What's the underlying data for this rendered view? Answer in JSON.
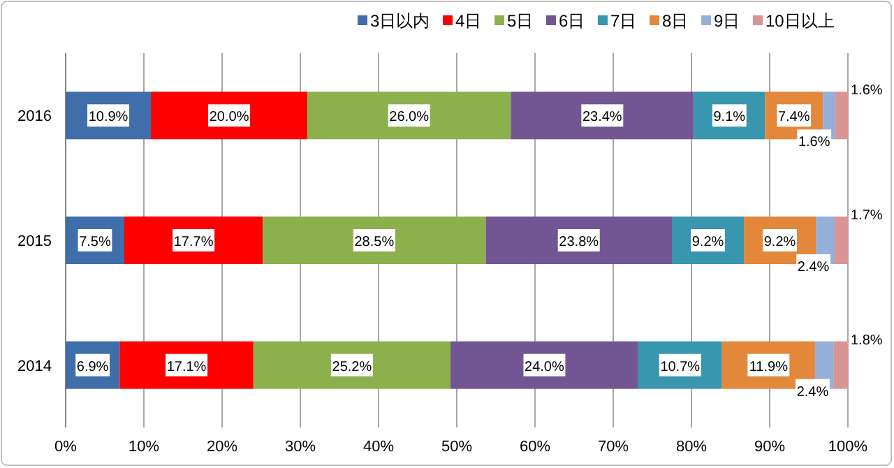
{
  "chart_data": {
    "type": "bar",
    "orientation": "horizontal",
    "stacked": true,
    "categories": [
      "2016",
      "2015",
      "2014"
    ],
    "series": [
      {
        "name": "3日以内",
        "color": "#3f6eaa",
        "values": [
          10.9,
          7.5,
          6.9
        ],
        "value_labels": [
          "10.9%",
          "7.5%",
          "6.9%"
        ]
      },
      {
        "name": "4日",
        "color": "#ff0000",
        "values": [
          20.0,
          17.7,
          17.1
        ],
        "value_labels": [
          "20.0%",
          "17.7%",
          "17.1%"
        ]
      },
      {
        "name": "5日",
        "color": "#8cb04c",
        "values": [
          26.0,
          28.5,
          25.2
        ],
        "value_labels": [
          "26.0%",
          "28.5%",
          "25.2%"
        ]
      },
      {
        "name": "6日",
        "color": "#725694",
        "values": [
          23.4,
          23.8,
          24.0
        ],
        "value_labels": [
          "23.4%",
          "23.8%",
          "24.0%"
        ]
      },
      {
        "name": "7日",
        "color": "#3897ae",
        "values": [
          9.1,
          9.2,
          10.7
        ],
        "value_labels": [
          "9.1%",
          "9.2%",
          "10.7%"
        ]
      },
      {
        "name": "8日",
        "color": "#e3873b",
        "values": [
          7.4,
          9.2,
          11.9
        ],
        "value_labels": [
          "7.4%",
          "9.2%",
          "11.9%"
        ]
      },
      {
        "name": "9日",
        "color": "#95b0d8",
        "values": [
          1.6,
          2.4,
          2.4
        ],
        "value_labels": [
          "1.6%",
          "2.4%",
          "2.4%"
        ]
      },
      {
        "name": "10日以上",
        "color": "#d99594",
        "values": [
          1.6,
          1.7,
          1.8
        ],
        "value_labels": [
          "1.6%",
          "1.7%",
          "1.8%"
        ]
      }
    ],
    "xlim": [
      0,
      100
    ],
    "xticks": [
      {
        "value": 0,
        "label": "0%"
      },
      {
        "value": 10,
        "label": "10%"
      },
      {
        "value": 20,
        "label": "20%"
      },
      {
        "value": 30,
        "label": "30%"
      },
      {
        "value": 40,
        "label": "40%"
      },
      {
        "value": 50,
        "label": "50%"
      },
      {
        "value": 60,
        "label": "60%"
      },
      {
        "value": 70,
        "label": "70%"
      },
      {
        "value": 80,
        "label": "80%"
      },
      {
        "value": 90,
        "label": "90%"
      },
      {
        "value": 100,
        "label": "100%"
      }
    ],
    "grid": "x",
    "legend": "top right"
  }
}
